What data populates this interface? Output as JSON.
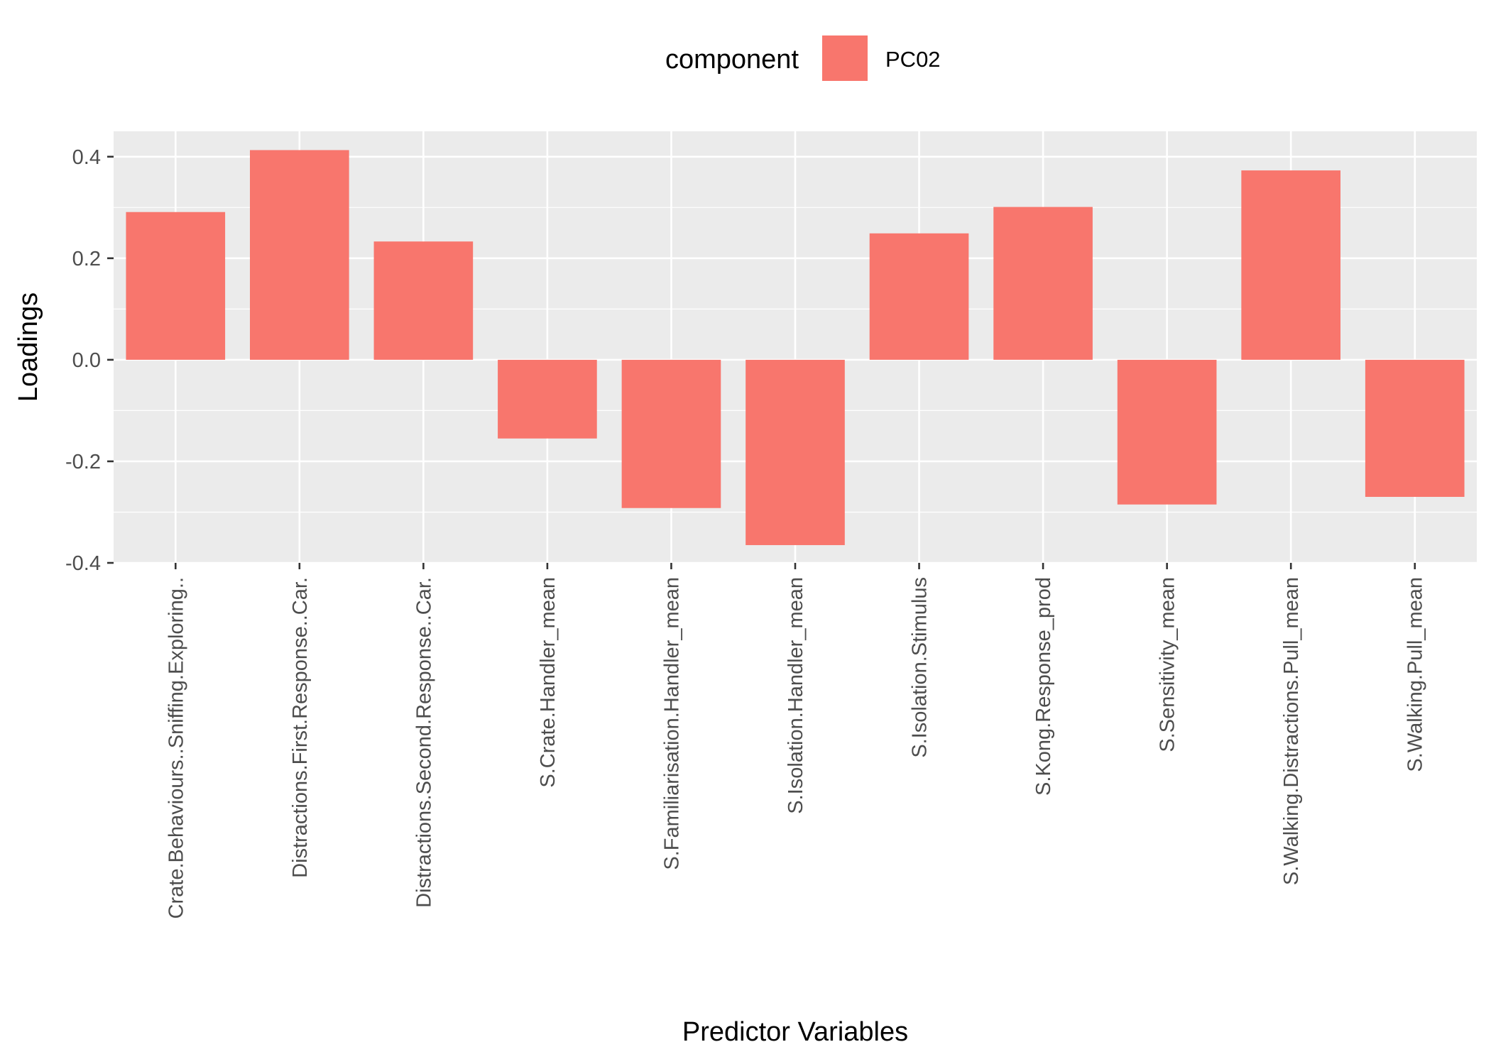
{
  "chart_data": {
    "type": "bar",
    "xlabel": "Predictor Variables",
    "ylabel": "Loadings",
    "ylim": [
      -0.4,
      0.45
    ],
    "yticks": [
      "-0.4",
      "-0.2",
      "0.0",
      "0.2",
      "0.4"
    ],
    "grid": true,
    "legend": {
      "title": "component",
      "placement": "top",
      "entries": [
        "PC02"
      ]
    },
    "categories": [
      "Crate.Behaviours..Sniffing.Exploring..",
      "Distractions.First.Response..Car.",
      "Distractions.Second.Response..Car.",
      "S.Crate.Handler_mean",
      "S.Familiarisation.Handler_mean",
      "S.Isolation.Handler_mean",
      "S.Isolation.Stimulus",
      "S.Kong.Response_prod",
      "S.Sensitivity_mean",
      "S.Walking.Distractions.Pull_mean",
      "S.Walking.Pull_mean"
    ],
    "series": [
      {
        "name": "PC02",
        "color": "#F8766D",
        "values": [
          0.291,
          0.413,
          0.233,
          -0.155,
          -0.292,
          -0.365,
          0.249,
          0.301,
          -0.285,
          0.373,
          -0.27
        ]
      }
    ]
  }
}
